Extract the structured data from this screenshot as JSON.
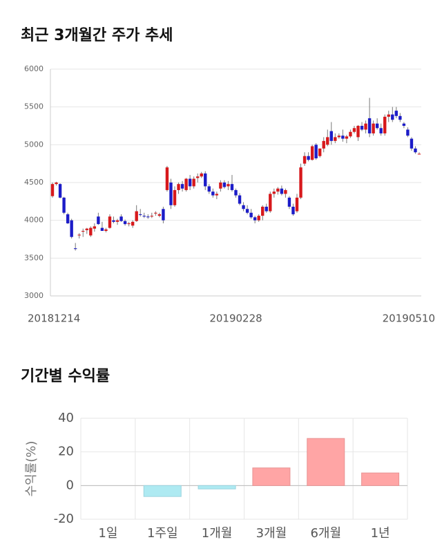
{
  "chart_data": [
    {
      "type": "candlestick",
      "title": "최근 3개월간 주가 추세",
      "categories": [
        "20181214",
        null,
        null,
        null,
        null,
        null,
        null,
        null,
        null,
        null,
        null,
        null,
        null,
        null,
        null,
        null,
        null,
        null,
        null,
        null,
        null,
        null,
        null,
        null,
        null,
        null,
        null,
        null,
        null,
        null,
        null,
        null,
        null,
        null,
        null,
        null,
        null,
        null,
        null,
        null,
        null,
        null,
        null,
        null,
        null,
        null,
        null,
        null,
        "20190228",
        null,
        null,
        null,
        null,
        null,
        null,
        null,
        null,
        null,
        null,
        null,
        null,
        null,
        null,
        null,
        null,
        null,
        null,
        null,
        null,
        null,
        null,
        null,
        null,
        null,
        null,
        null,
        null,
        null,
        null,
        null,
        null,
        null,
        null,
        null,
        null,
        null,
        null,
        null,
        null,
        null,
        null,
        null,
        null,
        null,
        null,
        null,
        "20190510"
      ],
      "open": [
        4320,
        4480,
        4480,
        4300,
        4080,
        4000,
        3630,
        3800,
        3850,
        3870,
        3800,
        3890,
        4050,
        3900,
        3860,
        3900,
        4000,
        3980,
        4050,
        3990,
        3950,
        3930,
        3990,
        4080,
        4060,
        4050,
        4050,
        4090,
        4060,
        4150,
        4400,
        4500,
        4200,
        4400,
        4480,
        4400,
        4550,
        4450,
        4560,
        4580,
        4620,
        4450,
        4380,
        4330,
        4420,
        4500,
        4450,
        4480,
        4400,
        4330,
        4200,
        4150,
        4100,
        4040,
        4000,
        4060,
        4180,
        4120,
        4350,
        4380,
        4420,
        4350,
        4300,
        4180,
        4120,
        4300,
        4750,
        4850,
        4800,
        5000,
        4850,
        4950,
        5000,
        5180,
        5050,
        5100,
        5120,
        5080,
        5110,
        5170,
        5100,
        5250,
        5200,
        5350,
        5150,
        5280,
        5220,
        5150,
        5370,
        5400,
        5450,
        5380,
        5280,
        5200,
        5080,
        4950,
        4880
      ],
      "high": [
        4500,
        4510,
        4490,
        4310,
        4100,
        4020,
        3700,
        3830,
        3890,
        3900,
        3920,
        3960,
        4100,
        3980,
        3900,
        4080,
        4050,
        4020,
        4080,
        4010,
        3980,
        4000,
        4200,
        4150,
        4100,
        4080,
        4100,
        4120,
        4100,
        4180,
        4720,
        4550,
        4450,
        4500,
        4520,
        4560,
        4600,
        4580,
        4620,
        4640,
        4650,
        4480,
        4420,
        4380,
        4530,
        4530,
        4520,
        4600,
        4420,
        4360,
        4240,
        4200,
        4150,
        4060,
        4080,
        4200,
        4220,
        4380,
        4420,
        4440,
        4460,
        4420,
        4320,
        4220,
        4350,
        4750,
        4900,
        4900,
        5000,
        5020,
        4950,
        5100,
        5200,
        5300,
        5150,
        5150,
        5200,
        5130,
        5200,
        5250,
        5260,
        5300,
        5320,
        5620,
        5320,
        5350,
        5280,
        5400,
        5450,
        5500,
        5500,
        5420,
        5300,
        5230,
        5100,
        4980,
        4900
      ],
      "low": [
        4300,
        4460,
        4290,
        4080,
        3950,
        3760,
        3600,
        3760,
        3780,
        3820,
        3780,
        3850,
        3940,
        3860,
        3840,
        3890,
        3960,
        3940,
        3980,
        3930,
        3920,
        3900,
        3980,
        4050,
        4030,
        4020,
        4030,
        4060,
        4040,
        3960,
        4380,
        4150,
        4180,
        4350,
        4380,
        4380,
        4400,
        4420,
        4500,
        4560,
        4400,
        4350,
        4300,
        4280,
        4380,
        4420,
        4400,
        4380,
        4300,
        4200,
        4120,
        4080,
        4020,
        3960,
        3980,
        4000,
        4100,
        4100,
        4300,
        4340,
        4330,
        4300,
        4150,
        4060,
        4100,
        4280,
        4720,
        4780,
        4790,
        4800,
        4830,
        4900,
        4980,
        5000,
        5020,
        5080,
        5040,
        5020,
        5090,
        5150,
        5050,
        5180,
        5150,
        5100,
        5120,
        5200,
        5120,
        5120,
        5300,
        5300,
        5350,
        5300,
        5220,
        5100,
        4920,
        4880,
        4870
      ],
      "close": [
        4480,
        4500,
        4300,
        4100,
        3960,
        3780,
        3620,
        3810,
        3860,
        3890,
        3900,
        3920,
        3950,
        3860,
        3880,
        4050,
        3980,
        4000,
        3990,
        3950,
        3960,
        3980,
        4120,
        4070,
        4050,
        4040,
        4060,
        4100,
        4080,
        4000,
        4700,
        4200,
        4400,
        4480,
        4420,
        4550,
        4450,
        4550,
        4580,
        4620,
        4450,
        4380,
        4330,
        4350,
        4500,
        4440,
        4480,
        4400,
        4330,
        4220,
        4150,
        4100,
        4040,
        4000,
        4060,
        4180,
        4120,
        4350,
        4380,
        4420,
        4350,
        4400,
        4180,
        4080,
        4300,
        4700,
        4850,
        4800,
        4980,
        4820,
        4950,
        5050,
        5100,
        5050,
        5100,
        5120,
        5080,
        5110,
        5170,
        5220,
        5250,
        5200,
        5280,
        5150,
        5280,
        5220,
        5150,
        5370,
        5400,
        5330,
        5380,
        5330,
        5250,
        5120,
        4950,
        4900,
        4880
      ],
      "up_color": "#d7191c",
      "down_color": "#1c1cc8",
      "ylim": [
        3000,
        6000
      ],
      "yticks": [
        3000,
        3500,
        4000,
        4500,
        5000,
        5500,
        6000
      ],
      "grid": true
    },
    {
      "type": "bar",
      "title": "기간별 수익률",
      "ylabel": "수익률(%)",
      "categories": [
        "1일",
        "1주일",
        "1개월",
        "3개월",
        "6개월",
        "1년"
      ],
      "values": [
        0,
        -6.5,
        -2,
        10.5,
        28,
        7.5
      ],
      "positive_color": "#ffa5a5",
      "negative_color": "#aeeaf2",
      "ylim": [
        -20,
        40
      ],
      "yticks": [
        -20,
        0,
        20,
        40
      ],
      "grid": true
    }
  ]
}
